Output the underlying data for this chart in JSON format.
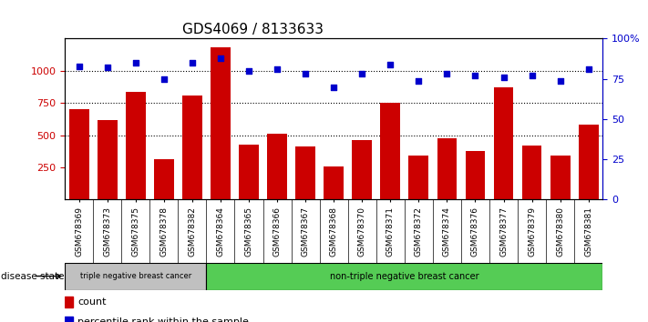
{
  "title": "GDS4069 / 8133633",
  "samples": [
    "GSM678369",
    "GSM678373",
    "GSM678375",
    "GSM678378",
    "GSM678382",
    "GSM678364",
    "GSM678365",
    "GSM678366",
    "GSM678367",
    "GSM678368",
    "GSM678370",
    "GSM678371",
    "GSM678372",
    "GSM678374",
    "GSM678376",
    "GSM678377",
    "GSM678379",
    "GSM678380",
    "GSM678381"
  ],
  "counts": [
    700,
    620,
    840,
    315,
    810,
    1180,
    430,
    515,
    415,
    255,
    460,
    750,
    345,
    480,
    380,
    870,
    420,
    345,
    580
  ],
  "percentiles": [
    83,
    82,
    85,
    75,
    85,
    88,
    80,
    81,
    78,
    70,
    78,
    84,
    74,
    78,
    77,
    76,
    77,
    74,
    81
  ],
  "bar_color": "#cc0000",
  "dot_color": "#0000cc",
  "group1_count": 5,
  "group1_label": "triple negative breast cancer",
  "group2_label": "non-triple negative breast cancer",
  "group1_color": "#c0c0c0",
  "group2_color": "#55cc55",
  "ylim_left": [
    0,
    1250
  ],
  "ylim_right": [
    0,
    100
  ],
  "yticks_left": [
    250,
    500,
    750,
    1000
  ],
  "yticks_right": [
    0,
    25,
    50,
    75,
    100
  ],
  "yticks_right_labels": [
    "0",
    "25",
    "50",
    "75",
    "100%"
  ],
  "legend_count_label": "count",
  "legend_pct_label": "percentile rank within the sample",
  "disease_state_label": "disease state",
  "background_color": "#ffffff",
  "tick_label_color_left": "#cc0000",
  "tick_label_color_right": "#0000cc",
  "title_fontsize": 11,
  "bar_width": 0.7
}
